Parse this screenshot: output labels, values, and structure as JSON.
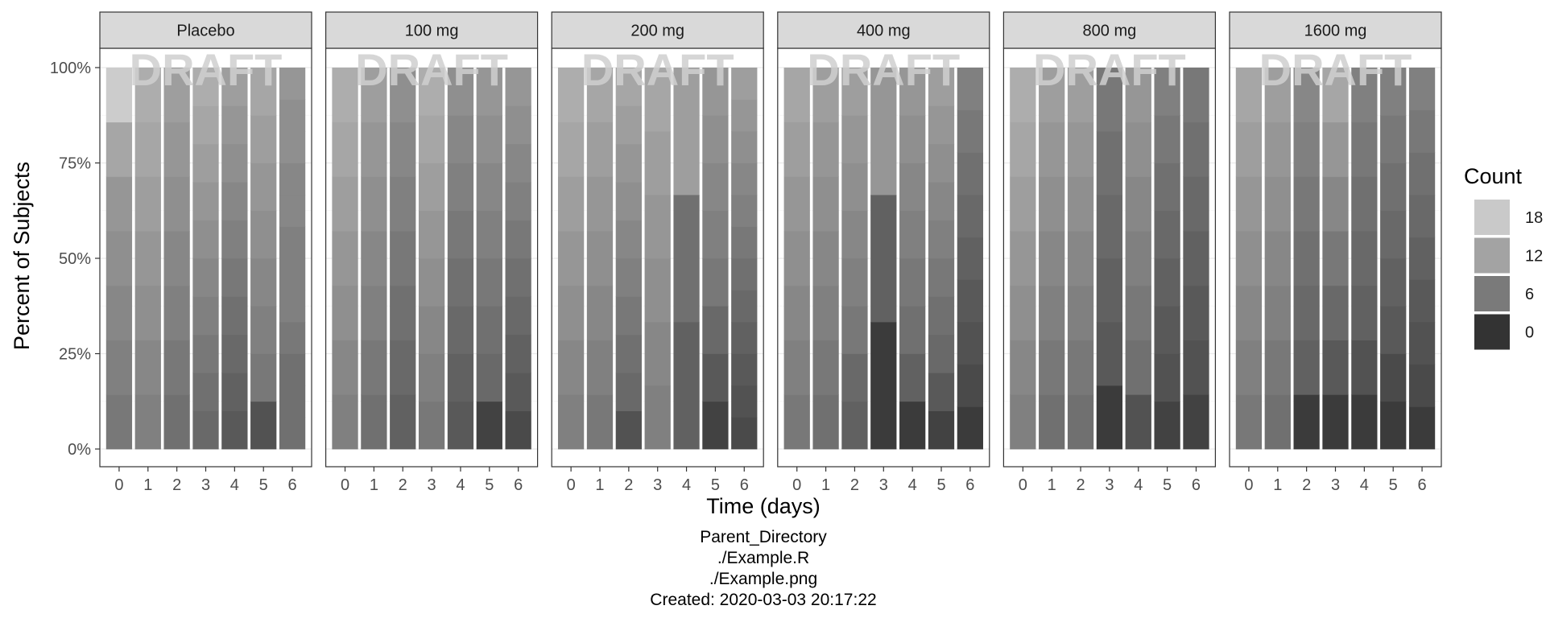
{
  "chart_data": {
    "type": "stacked-bar-facets",
    "xlabel": "Time (days)",
    "ylabel": "Percent of Subjects",
    "y_ticks": [
      "0%",
      "25%",
      "50%",
      "75%",
      "100%"
    ],
    "ylim": [
      0,
      100
    ],
    "x_categories": [
      "0",
      "1",
      "2",
      "3",
      "4",
      "5",
      "6"
    ],
    "watermark": "DRAFT",
    "legend": {
      "title": "Count",
      "position": "right",
      "items": [
        {
          "label": "18",
          "color": "#c9c9c9"
        },
        {
          "label": "12",
          "color": "#a3a3a3"
        },
        {
          "label": "6",
          "color": "#7a7a7a"
        },
        {
          "label": "0",
          "color": "#333333"
        }
      ]
    },
    "color_scale": {
      "min_value": 0,
      "max_value": 20,
      "low_color": "#333333",
      "high_color": "#cccccc"
    },
    "facets": [
      {
        "label": "Placebo",
        "bars": [
          [
            9,
            10,
            11,
            12,
            13,
            15,
            20
          ],
          [
            10,
            11,
            12,
            13,
            14,
            15,
            16
          ],
          [
            8,
            9,
            10,
            11,
            12,
            13,
            14
          ],
          [
            7,
            8,
            9,
            10,
            11,
            12,
            13,
            14,
            15,
            16
          ],
          [
            5,
            6,
            7,
            8,
            9,
            10,
            11,
            12,
            13,
            14
          ],
          [
            4,
            9,
            10,
            11,
            12,
            13,
            14,
            15
          ],
          [
            8,
            8,
            8,
            9,
            10,
            10,
            10,
            11,
            11,
            12,
            12,
            13
          ]
        ]
      },
      {
        "label": "100 mg",
        "bars": [
          [
            10,
            11,
            12,
            13,
            14,
            15,
            16
          ],
          [
            8,
            9,
            10,
            11,
            12,
            13,
            14
          ],
          [
            6,
            7,
            8,
            9,
            10,
            11,
            12
          ],
          [
            9,
            10,
            11,
            12,
            13,
            14,
            15,
            16
          ],
          [
            5,
            6,
            7,
            8,
            9,
            10,
            11,
            12
          ],
          [
            2,
            7,
            8,
            9,
            10,
            11,
            12,
            13
          ],
          [
            3,
            5,
            6,
            7,
            8,
            9,
            10,
            11,
            12,
            13
          ]
        ]
      },
      {
        "label": "200 mg",
        "bars": [
          [
            10,
            11,
            12,
            13,
            14,
            15,
            16
          ],
          [
            9,
            10,
            11,
            12,
            13,
            14,
            15
          ],
          [
            4,
            7,
            8,
            9,
            10,
            11,
            12,
            13,
            14,
            15
          ],
          [
            10,
            11,
            12,
            13,
            14,
            15
          ],
          [
            6,
            8,
            14
          ],
          [
            2,
            5,
            7,
            9,
            10,
            11,
            12,
            13
          ],
          [
            3,
            4,
            5,
            6,
            7,
            8,
            9,
            10,
            11,
            12,
            13,
            14
          ]
        ]
      },
      {
        "label": "400 mg",
        "bars": [
          [
            9,
            10,
            11,
            12,
            13,
            14,
            15
          ],
          [
            8,
            9,
            10,
            11,
            12,
            13,
            14
          ],
          [
            6,
            7,
            9,
            10,
            11,
            12,
            13,
            14
          ],
          [
            1,
            6,
            13
          ],
          [
            1,
            6,
            8,
            9,
            10,
            11,
            12,
            13
          ],
          [
            2,
            5,
            7,
            8,
            9,
            10,
            11,
            12,
            13,
            14
          ],
          [
            1,
            3,
            4,
            5,
            6,
            7,
            8,
            9,
            10
          ]
        ]
      },
      {
        "label": "800 mg",
        "bars": [
          [
            10,
            11,
            12,
            13,
            14,
            15,
            16
          ],
          [
            8,
            9,
            10,
            11,
            12,
            13,
            14
          ],
          [
            8,
            9,
            10,
            11,
            12,
            13,
            14
          ],
          [
            1,
            5,
            6,
            7,
            8,
            9
          ],
          [
            4,
            8,
            9,
            10,
            11,
            12,
            13
          ],
          [
            2,
            4,
            5,
            6,
            7,
            8,
            9,
            10
          ],
          [
            2,
            4,
            5,
            6,
            7,
            8,
            9
          ]
        ]
      },
      {
        "label": "1600 mg",
        "bars": [
          [
            9,
            10,
            11,
            12,
            13,
            14,
            15
          ],
          [
            8,
            9,
            10,
            11,
            12,
            13,
            14
          ],
          [
            1,
            6,
            7,
            8,
            9,
            10,
            11
          ],
          [
            1,
            5,
            7,
            9,
            11,
            13,
            15
          ],
          [
            1,
            4,
            6,
            7,
            8,
            9,
            10
          ],
          [
            1,
            3,
            5,
            6,
            7,
            8,
            9,
            10
          ],
          [
            1,
            3,
            4,
            5,
            6,
            7,
            8,
            9,
            10
          ]
        ]
      }
    ]
  },
  "caption": {
    "lines": [
      "Parent_Directory",
      "./Example.R",
      "./Example.png",
      "Created: 2020-03-03 20:17:22"
    ]
  }
}
